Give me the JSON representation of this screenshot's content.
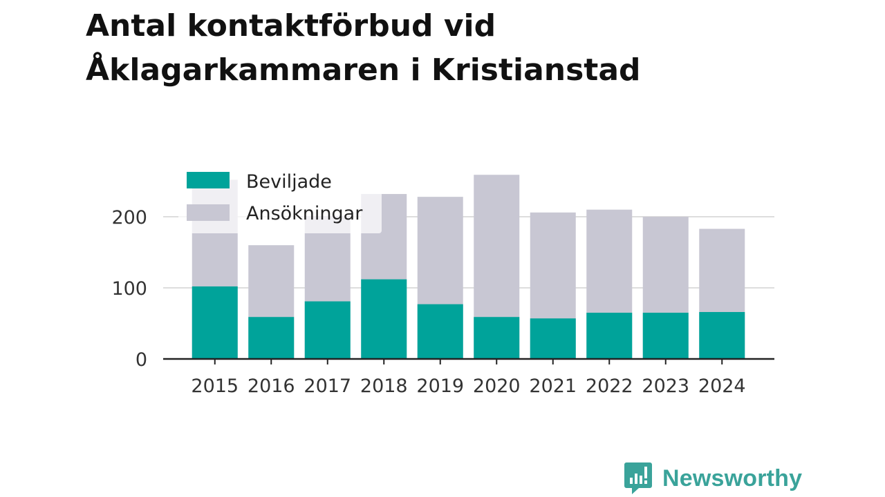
{
  "title": {
    "line1": "Antal kontaktförbud vid",
    "line2": "Åklagarkammaren i Kristianstad"
  },
  "brand": {
    "name": "Newsworthy",
    "icon": "newsworthy-logo-icon"
  },
  "colors": {
    "granted": "#00a39a",
    "applications": "#c8c7d3",
    "axis": "#222222",
    "grid": "#dddddd"
  },
  "chart_data": {
    "type": "bar",
    "stacked": "overlay",
    "categories": [
      "2015",
      "2016",
      "2017",
      "2018",
      "2019",
      "2020",
      "2021",
      "2022",
      "2023",
      "2024"
    ],
    "series": [
      {
        "name": "Beviljade",
        "values": [
          102,
          59,
          81,
          112,
          77,
          59,
          57,
          65,
          65,
          66
        ]
      },
      {
        "name": "Ansökningar",
        "values": [
          252,
          160,
          201,
          232,
          228,
          259,
          206,
          210,
          200,
          183
        ]
      }
    ],
    "yticks": [
      0,
      100,
      200
    ],
    "ylim": [
      0,
      270
    ],
    "grid": true,
    "legend": "top-left",
    "xlabel": "",
    "ylabel": ""
  }
}
